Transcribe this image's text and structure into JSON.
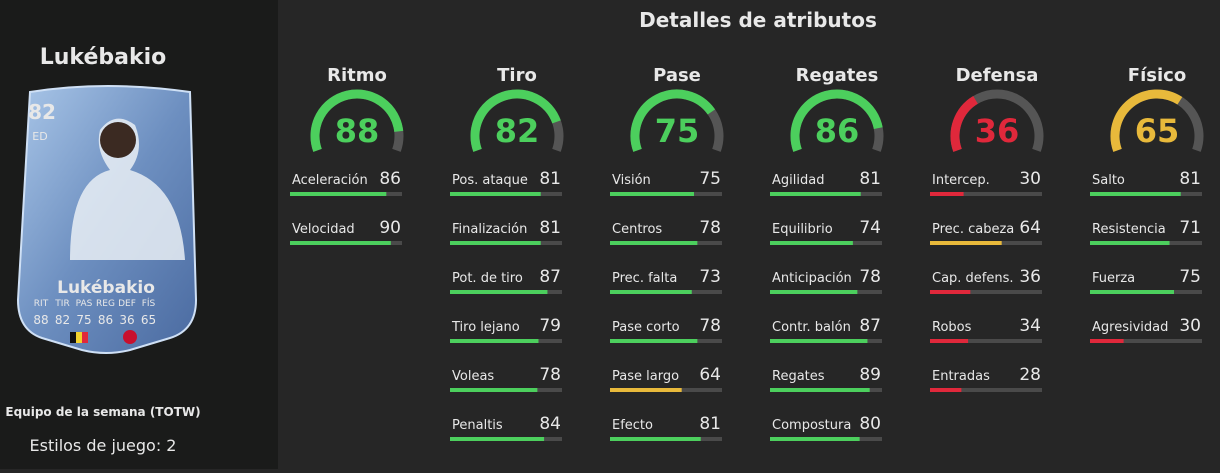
{
  "player": {
    "name": "Lukébakio",
    "card": {
      "rating": 82,
      "position": "ED",
      "name": "Lukébakio",
      "stats": [
        {
          "label": "RIT",
          "value": 88
        },
        {
          "label": "TIR",
          "value": 82
        },
        {
          "label": "PAS",
          "value": 75
        },
        {
          "label": "REG",
          "value": 86
        },
        {
          "label": "DEF",
          "value": 36
        },
        {
          "label": "FÍS",
          "value": 65
        }
      ]
    },
    "subtitle": "Equipo de la semana (TOTW)",
    "playstyles": "Estilos de juego: 2"
  },
  "attributes": {
    "title": "Detalles de atributos",
    "groups": [
      {
        "name": "Ritmo",
        "value": 88,
        "stats": [
          {
            "label": "Aceleración",
            "value": 86
          },
          {
            "label": "Velocidad",
            "value": 90
          }
        ]
      },
      {
        "name": "Tiro",
        "value": 82,
        "stats": [
          {
            "label": "Pos. ataque",
            "value": 81
          },
          {
            "label": "Finalización",
            "value": 81
          },
          {
            "label": "Pot. de tiro",
            "value": 87
          },
          {
            "label": "Tiro lejano",
            "value": 79
          },
          {
            "label": "Voleas",
            "value": 78
          },
          {
            "label": "Penaltis",
            "value": 84
          }
        ]
      },
      {
        "name": "Pase",
        "value": 75,
        "stats": [
          {
            "label": "Visión",
            "value": 75
          },
          {
            "label": "Centros",
            "value": 78
          },
          {
            "label": "Prec. falta",
            "value": 73
          },
          {
            "label": "Pase corto",
            "value": 78
          },
          {
            "label": "Pase largo",
            "value": 64
          },
          {
            "label": "Efecto",
            "value": 81
          }
        ]
      },
      {
        "name": "Regates",
        "value": 86,
        "stats": [
          {
            "label": "Agilidad",
            "value": 81
          },
          {
            "label": "Equilibrio",
            "value": 74
          },
          {
            "label": "Anticipación",
            "value": 78
          },
          {
            "label": "Contr. balón",
            "value": 87
          },
          {
            "label": "Regates",
            "value": 89
          },
          {
            "label": "Compostura",
            "value": 80
          }
        ]
      },
      {
        "name": "Defensa",
        "value": 36,
        "stats": [
          {
            "label": "Intercep.",
            "value": 30
          },
          {
            "label": "Prec. cabeza",
            "value": 64
          },
          {
            "label": "Cap. defens.",
            "value": 36
          },
          {
            "label": "Robos",
            "value": 34
          },
          {
            "label": "Entradas",
            "value": 28
          }
        ]
      },
      {
        "name": "Físico",
        "value": 65,
        "stats": [
          {
            "label": "Salto",
            "value": 81
          },
          {
            "label": "Resistencia",
            "value": 71
          },
          {
            "label": "Fuerza",
            "value": 75
          },
          {
            "label": "Agresividad",
            "value": 30
          }
        ]
      }
    ]
  }
}
